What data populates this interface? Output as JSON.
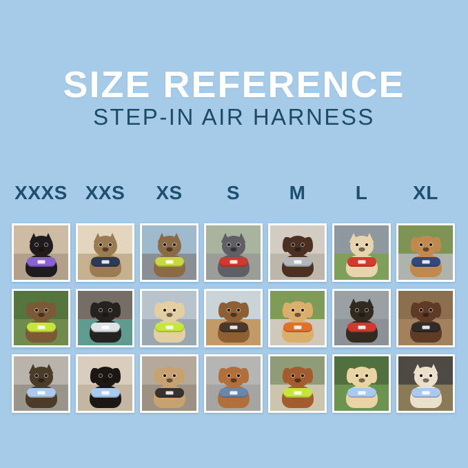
{
  "header": {
    "title": "SIZE REFERENCE",
    "subtitle": "STEP-IN AIR HARNESS"
  },
  "sizes": [
    "XXXS",
    "XXS",
    "XS",
    "S",
    "M",
    "L",
    "XL"
  ],
  "palette": {
    "background": "#a5cbe9",
    "title_text": "#ffffff",
    "subtitle_text": "#1d4b66",
    "size_label_text": "#1e4f6e",
    "photo_frame": "#ffffff"
  },
  "grid": {
    "rows": [
      [
        {
          "desc": "black kitten in purple harness indoors",
          "species": "cat",
          "ears": "cat",
          "fur": "#201c1e",
          "harness": "#8a63d2",
          "bg_top": "#cdbba4",
          "bg_bottom": "#b3a08a"
        },
        {
          "desc": "bengal cat in dark navy harness by window",
          "species": "cat",
          "ears": "cat",
          "fur": "#9a7b52",
          "harness": "#2e3a55",
          "bg_top": "#e4d6be",
          "bg_bottom": "#c6b18e"
        },
        {
          "desc": "tabby cat in chartreuse harness inside car",
          "species": "cat",
          "ears": "cat",
          "fur": "#8b6b45",
          "harness": "#c9d83e",
          "bg_top": "#9fb9cd",
          "bg_bottom": "#8a8f96"
        },
        {
          "desc": "grey french bulldog in red harness on path",
          "species": "dog",
          "ears": "up",
          "fur": "#5f5f65",
          "harness": "#cf3a2e",
          "bg_top": "#a9b49f",
          "bg_bottom": "#9b9d99"
        },
        {
          "desc": "chocolate long-haired dachshund in grey harness on concrete",
          "species": "dog",
          "ears": "down",
          "fur": "#4c3122",
          "harness": "#b3b7bc",
          "bg_top": "#d2ccc2",
          "bg_bottom": "#bdb6aa"
        },
        {
          "desc": "cream shiba inu with orange ball in red harness on field",
          "species": "dog",
          "ears": "up",
          "fur": "#e7d4ad",
          "harness": "#d63a2e",
          "bg_top": "#8f989e",
          "bg_bottom": "#7fa05a"
        },
        {
          "desc": "golden retriever in navy harness on flower-lined path",
          "species": "dog",
          "ears": "down",
          "fur": "#c08a4e",
          "harness": "#32497f",
          "bg_top": "#7e9455",
          "bg_bottom": "#aeb3ac"
        }
      ],
      [
        {
          "desc": "scruffy brown dog in neon green harness in garden",
          "species": "dog",
          "ears": "down",
          "fur": "#7c5a38",
          "harness": "#c7e63b",
          "bg_top": "#55753f",
          "bg_bottom": "#6f8b4e"
        },
        {
          "desc": "black puppy in white mesh harness on teal blanket in car",
          "species": "dog",
          "ears": "down",
          "fur": "#26221f",
          "harness": "#dde3e6",
          "bg_top": "#746e66",
          "bg_bottom": "#5f9c8f"
        },
        {
          "desc": "cream long-haired dachshund in neon green harness on boat",
          "species": "dog",
          "ears": "down",
          "fur": "#e3cfa2",
          "harness": "#c7e63b",
          "bg_top": "#b9c3cc",
          "bg_bottom": "#9aa6b0"
        },
        {
          "desc": "long-haired dachshund on sunny pier by water",
          "species": "dog",
          "ears": "down",
          "fur": "#8d5f33",
          "harness": "#4a382a",
          "bg_top": "#c9d3d8",
          "bg_bottom": "#c29a67"
        },
        {
          "desc": "smiling golden puppy in orange harness on patio",
          "species": "dog",
          "ears": "down",
          "fur": "#dcae6b",
          "harness": "#e0712c",
          "bg_top": "#7e9c57",
          "bg_bottom": "#cfc9bd"
        },
        {
          "desc": "black and tan dog in red harness inside metal culvert",
          "species": "dog",
          "ears": "up",
          "fur": "#332a1f",
          "harness": "#cf3a2e",
          "bg_top": "#9aa0a4",
          "bg_bottom": "#8b9195"
        },
        {
          "desc": "brown and white dog in black harness on wooden deck",
          "species": "dog",
          "ears": "down",
          "fur": "#5f3b26",
          "harness": "#2e2b29",
          "bg_top": "#8c6f4f",
          "bg_bottom": "#a3815c"
        }
      ],
      [
        {
          "desc": "yorkie puppy in light blue harness on sunny sidewalk",
          "species": "dog",
          "ears": "up",
          "fur": "#4a3c26",
          "harness": "#aac9ec",
          "bg_top": "#b9b4ab",
          "bg_bottom": "#9a958b"
        },
        {
          "desc": "black and tan dachshund puppy in light blue harness on sofa",
          "species": "dog",
          "ears": "down",
          "fur": "#1c1713",
          "harness": "#a9c9ee",
          "bg_top": "#d9cdbd",
          "bg_bottom": "#c4b6a2"
        },
        {
          "desc": "apricot doodle puppy in black harness on deck",
          "species": "dog",
          "ears": "down",
          "fur": "#c8a171",
          "harness": "#35322f",
          "bg_top": "#b4aa9c",
          "bg_bottom": "#9c9183"
        },
        {
          "desc": "red dachshund in slate blue harness on pavement",
          "species": "dog",
          "ears": "down",
          "fur": "#b26f3a",
          "harness": "#6c87a6",
          "bg_top": "#b5b5b3",
          "bg_bottom": "#a7a5a1"
        },
        {
          "desc": "red goldendoodle in neon green harness on steps",
          "species": "dog",
          "ears": "down",
          "fur": "#a35c2d",
          "harness": "#c7e63b",
          "bg_top": "#8f9c77",
          "bg_bottom": "#cdc4ae"
        },
        {
          "desc": "cream golden puppy in light blue harness and leash on grass",
          "species": "dog",
          "ears": "down",
          "fur": "#ead4a4",
          "harness": "#a9c9ee",
          "bg_top": "#51703f",
          "bg_bottom": "#6d9350"
        },
        {
          "desc": "white shepherd in light blue harness on evening street",
          "species": "dog",
          "ears": "up",
          "fur": "#eae0cc",
          "harness": "#a9c9ee",
          "bg_top": "#4c4a42",
          "bg_bottom": "#8a7a55"
        }
      ]
    ]
  }
}
